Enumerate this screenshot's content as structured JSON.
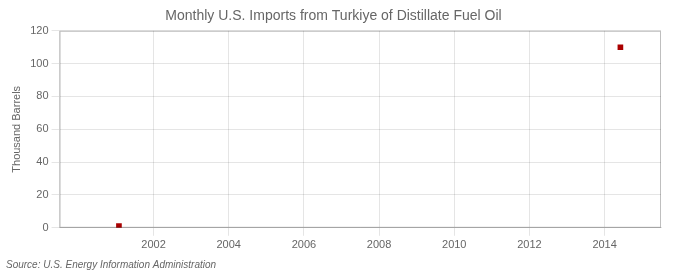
{
  "chart_data": {
    "type": "scatter",
    "title": "Monthly U.S. Imports from Turkiye of Distillate Fuel Oil",
    "y_label": "Thousand Barrels",
    "source": "Source: U.S. Energy Information Administration",
    "x": [
      2001.08,
      2014.42
    ],
    "values": [
      1,
      110
    ],
    "color": "#aa0000",
    "marker": "square",
    "xlim": [
      1999.5,
      2015.5
    ],
    "ylim": [
      0,
      120
    ],
    "xticks": [
      2002,
      2004,
      2006,
      2008,
      2010,
      2012,
      2014
    ],
    "yticks": [
      0,
      20,
      40,
      60,
      80,
      100,
      120
    ],
    "grid": true
  }
}
